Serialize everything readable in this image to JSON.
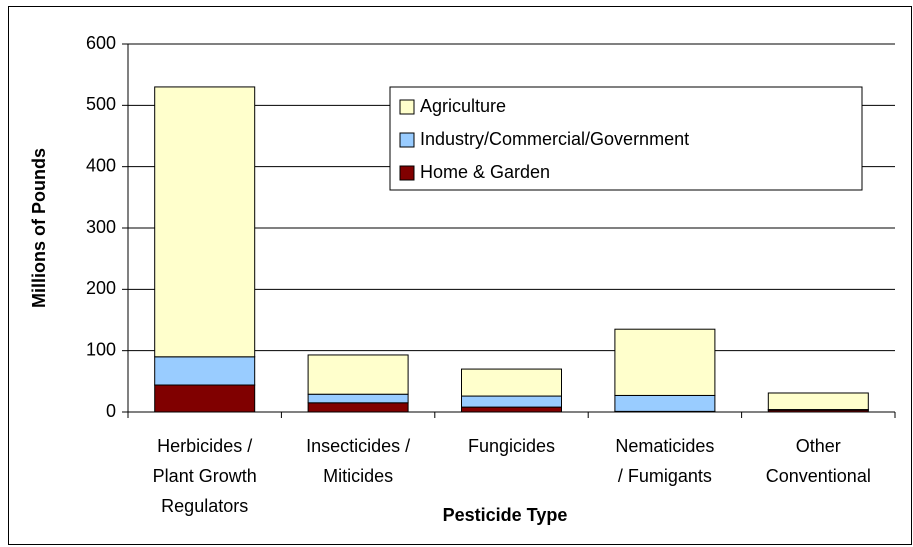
{
  "chart_data": {
    "type": "stacked_bar",
    "categories": [
      [
        "Herbicides /",
        "Plant Growth",
        "Regulators"
      ],
      [
        "Insecticides /",
        "Miticides"
      ],
      [
        "Fungicides"
      ],
      [
        "Nematicides",
        "/ Fumigants"
      ],
      [
        "Other",
        "Conventional"
      ]
    ],
    "series": [
      {
        "name": "Home & Garden",
        "color": "#800000",
        "values": [
          44,
          15,
          8,
          1,
          3
        ]
      },
      {
        "name": "Industry/Commercial/Government",
        "color": "#99ccff",
        "values": [
          46,
          14,
          18,
          26,
          1
        ]
      },
      {
        "name": "Agriculture",
        "color": "#ffffcc",
        "values": [
          440,
          64,
          44,
          108,
          27
        ]
      }
    ],
    "xlabel": "Pesticide Type",
    "ylabel": "Millions of Pounds",
    "ylim": [
      0,
      600
    ],
    "yticks": [
      0,
      100,
      200,
      300,
      400,
      500,
      600
    ],
    "grid": true,
    "legend": "top-right"
  }
}
